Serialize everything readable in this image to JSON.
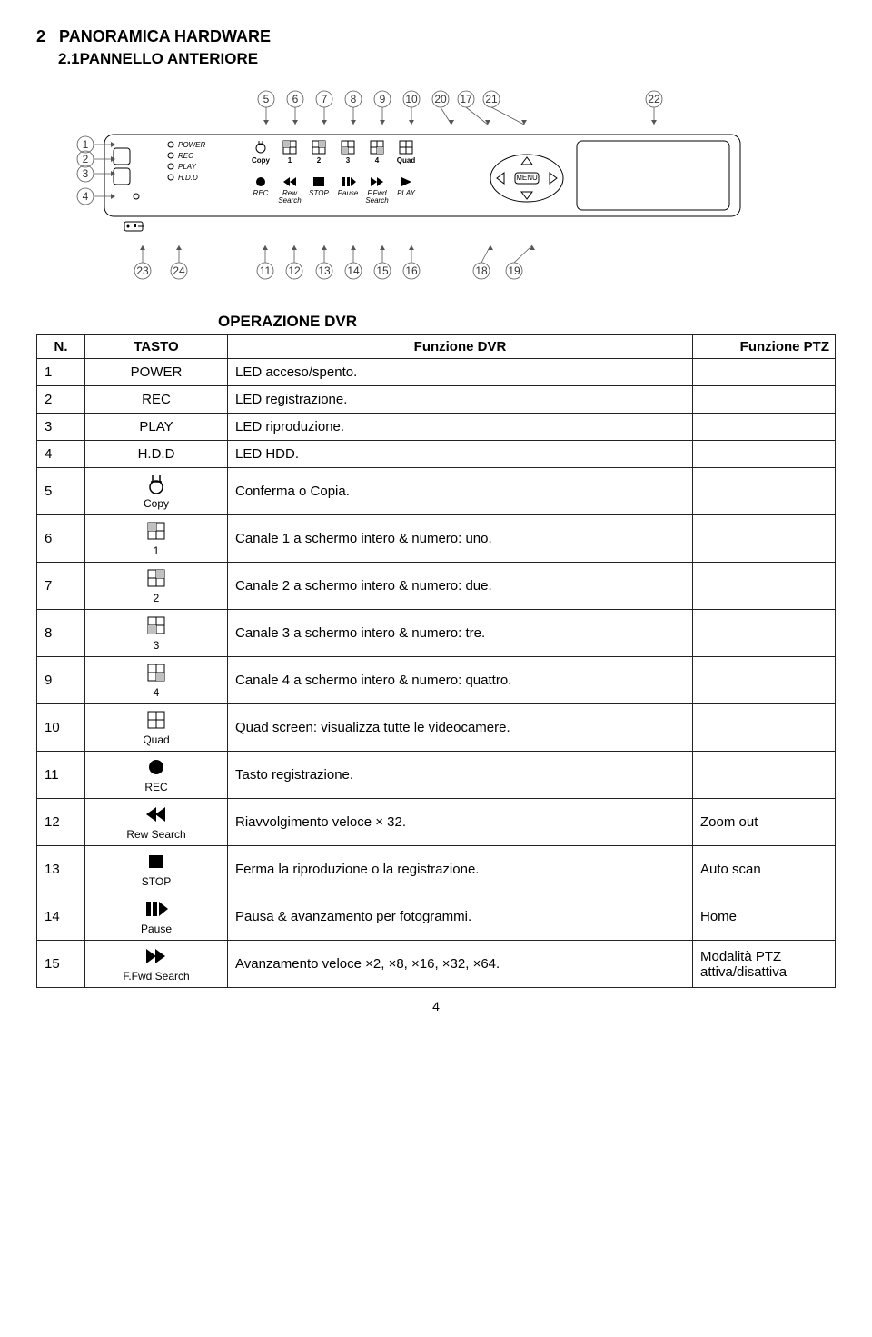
{
  "section_number": "2",
  "section_title": "PANORAMICA HARDWARE",
  "subsection": "2.1PANNELLO ANTERIORE",
  "operation_title": "OPERAZIONE DVR",
  "table_headers": {
    "n": "N.",
    "tasto": "TASTO",
    "fdvr": "Funzione DVR",
    "fptz": "Funzione PTZ"
  },
  "page": "4",
  "panel": {
    "top_callouts": [
      "5",
      "6",
      "7",
      "8",
      "9",
      "10",
      "20",
      "17",
      "21",
      "22"
    ],
    "left_callouts": [
      "1",
      "2",
      "3",
      "4"
    ],
    "bottom_callouts": [
      "23",
      "24",
      "11",
      "12",
      "13",
      "14",
      "15",
      "16",
      "18",
      "19"
    ],
    "led_labels": [
      "POWER",
      "REC",
      "PLAY",
      "H.D.D"
    ],
    "btn_row1": [
      "Copy",
      "1",
      "2",
      "3",
      "4",
      "Quad"
    ],
    "btn_row2": [
      "REC",
      "Rew Search",
      "STOP",
      "Pause",
      "F.Fwd Search",
      "PLAY"
    ],
    "menu": "MENU"
  },
  "colors": {
    "uno": "#c0c0c0",
    "due": "#c0c0c0",
    "tre": "#c0c0c0",
    "quattro": "#c0c0c0",
    "quadline": "#444",
    "rec": "#000",
    "stop": "#000",
    "rew": "#000",
    "ffwd": "#000",
    "play": "#000",
    "pause": "#000"
  },
  "rows": [
    {
      "n": "1",
      "tasto": "POWER",
      "icon": "text",
      "fdvr": "LED acceso/spento.",
      "fptz": ""
    },
    {
      "n": "2",
      "tasto": "REC",
      "icon": "text",
      "fdvr": "LED registrazione.",
      "fptz": ""
    },
    {
      "n": "3",
      "tasto": "PLAY",
      "icon": "text",
      "fdvr": "LED riproduzione.",
      "fptz": ""
    },
    {
      "n": "4",
      "tasto": "H.D.D",
      "icon": "text",
      "fdvr": "LED HDD.",
      "fptz": ""
    },
    {
      "n": "5",
      "tasto": "Copy",
      "icon": "copy",
      "fdvr": "Conferma o Copia.",
      "fptz": ""
    },
    {
      "n": "6",
      "tasto": "1",
      "icon": "ch1",
      "fdvr": "Canale 1 a schermo intero & numero: uno.",
      "fptz": ""
    },
    {
      "n": "7",
      "tasto": "2",
      "icon": "ch2",
      "fdvr": "Canale 2 a schermo intero & numero: due.",
      "fptz": ""
    },
    {
      "n": "8",
      "tasto": "3",
      "icon": "ch3",
      "fdvr": "Canale 3 a schermo intero & numero: tre.",
      "fptz": ""
    },
    {
      "n": "9",
      "tasto": "4",
      "icon": "ch4",
      "fdvr": "Canale 4 a schermo intero & numero: quattro.",
      "fptz": ""
    },
    {
      "n": "10",
      "tasto": "Quad",
      "icon": "quad",
      "fdvr": "Quad screen: visualizza tutte le videocamere.",
      "fptz": ""
    },
    {
      "n": "11",
      "tasto": "REC",
      "icon": "rec",
      "fdvr": "Tasto registrazione.",
      "fptz": ""
    },
    {
      "n": "12",
      "tasto": "Rew Search",
      "icon": "rew",
      "fdvr": "Riavvolgimento veloce × 32.",
      "fptz": "Zoom out"
    },
    {
      "n": "13",
      "tasto": "STOP",
      "icon": "stop",
      "fdvr": "Ferma la riproduzione o la registrazione.",
      "fptz": "Auto scan"
    },
    {
      "n": "14",
      "tasto": "Pause",
      "icon": "pause",
      "fdvr": "Pausa & avanzamento per fotogrammi.",
      "fptz": "Home"
    },
    {
      "n": "15",
      "tasto": "F.Fwd Search",
      "icon": "ffwd",
      "fdvr": "Avanzamento veloce ×2, ×8, ×16, ×32, ×64.",
      "fptz": "Modalità PTZ attiva/disattiva"
    }
  ]
}
